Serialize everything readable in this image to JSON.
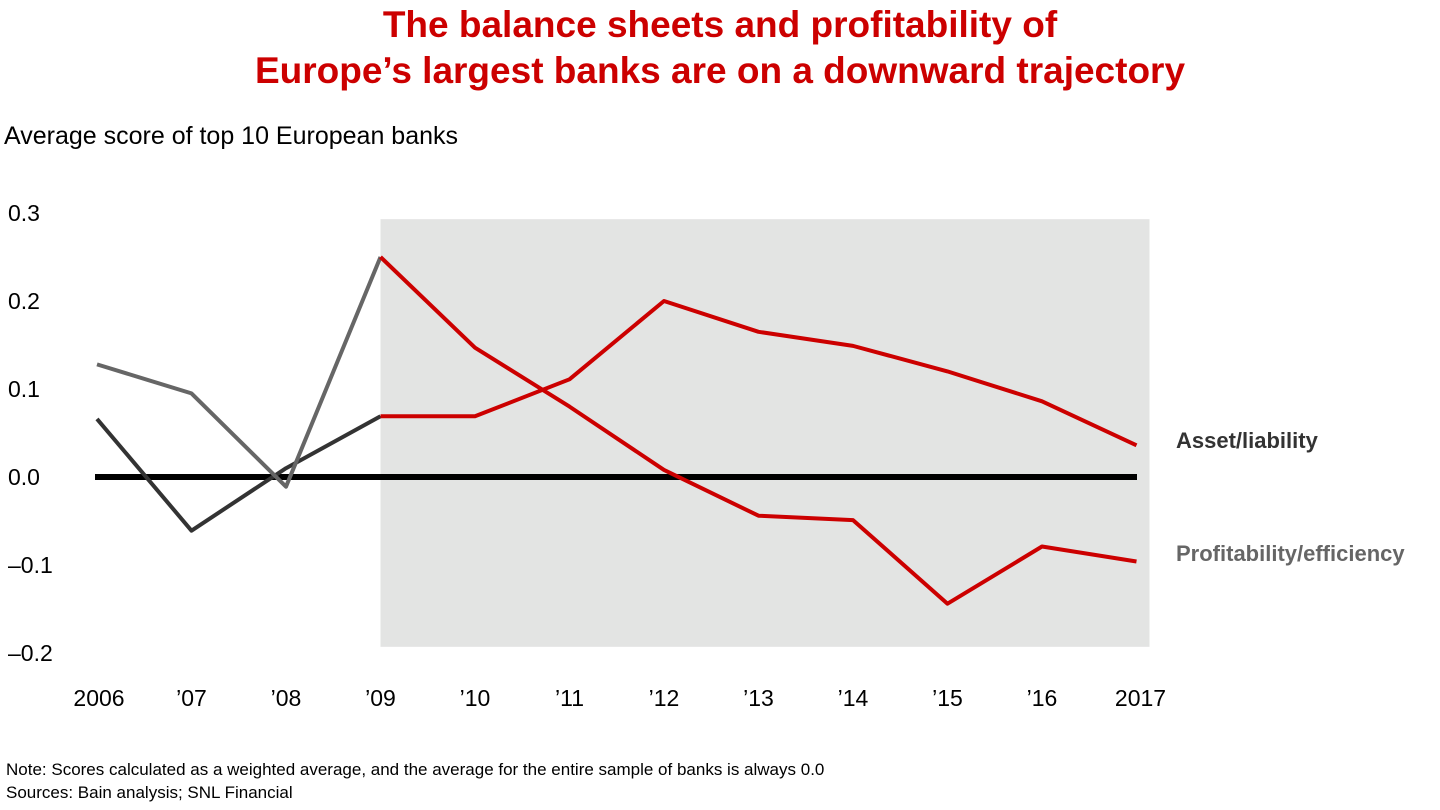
{
  "title_lines": [
    "The balance sheets and profitability of",
    "Europe’s largest banks are on a downward trajectory"
  ],
  "subtitle": "Average score of top 10 European banks",
  "notes": {
    "note": "Note: Scores calculated as a weighted average, and the average for the entire sample of banks is always 0.0",
    "sources": "Sources: Bain analysis; SNL Financial"
  },
  "colors": {
    "title": "#cc0000",
    "highlight": "#cc0000",
    "early_asset": "#333333",
    "early_profit": "#666666",
    "shade": "#e3e4e3",
    "zero_line": "#000000"
  },
  "chart_data": {
    "type": "line",
    "categories": [
      "2006",
      "’07",
      "’08",
      "’09",
      "’10",
      "’11",
      "’12",
      "’13",
      "’14",
      "’15",
      "’16",
      "2017"
    ],
    "ylim": [
      -0.2,
      0.3
    ],
    "yticks": [
      "0.3",
      "0.2",
      "0.1",
      "0.0",
      "–0.1",
      "–0.2"
    ],
    "ytick_values": [
      0.3,
      0.2,
      0.1,
      0.0,
      -0.1,
      -0.2
    ],
    "grid": false,
    "shaded_range": [
      "’09",
      "2017"
    ],
    "series": [
      {
        "name": "Asset/liability",
        "label_color": "#333333",
        "values": [
          0.066,
          -0.061,
          0.01,
          0.069,
          0.069,
          0.111,
          0.2,
          0.165,
          0.149,
          0.12,
          0.086,
          0.036
        ]
      },
      {
        "name": "Profitability/efficiency",
        "label_color": "#666666",
        "values": [
          0.128,
          0.095,
          -0.011,
          0.25,
          0.147,
          0.08,
          0.008,
          -0.044,
          -0.049,
          -0.144,
          -0.079,
          -0.096
        ]
      }
    ]
  }
}
